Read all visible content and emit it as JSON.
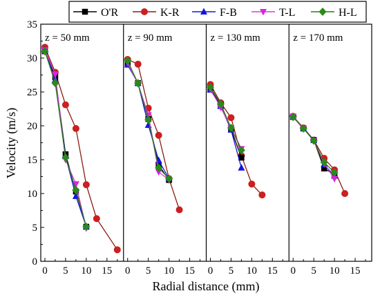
{
  "chart_data": {
    "type": "line",
    "xlabel": "Radial distance (mm)",
    "ylabel": "Velocity (m/s)",
    "ylim": [
      0,
      35
    ],
    "yticks": [
      0,
      5,
      10,
      15,
      20,
      25,
      30,
      35
    ],
    "panel_xlim": [
      -1,
      19
    ],
    "xticks": [
      0,
      5,
      10,
      15
    ],
    "legend_placement": "top-center",
    "grid": false,
    "series_styles": [
      {
        "name": "O'R",
        "marker": "square",
        "color": "#000000",
        "line": "#000000"
      },
      {
        "name": "K-R",
        "marker": "circle",
        "color": "#cc1f1f",
        "line": "#8a1a10"
      },
      {
        "name": "F-B",
        "marker": "triangle-up",
        "color": "#1414e0",
        "line": "#1414e0"
      },
      {
        "name": "T-L",
        "marker": "triangle-down",
        "color": "#e020e0",
        "line": "#d040d0"
      },
      {
        "name": "H-L",
        "marker": "diamond",
        "color": "#2a8a1a",
        "line": "#2a7a18"
      }
    ],
    "panels": [
      {
        "label": "z = 50 mm",
        "series": [
          {
            "name": "O'R",
            "x": [
              0,
              2.5,
              5,
              7.5,
              10
            ],
            "y": [
              31.0,
              27.2,
              15.8,
              10.3,
              5.1
            ]
          },
          {
            "name": "K-R",
            "x": [
              0,
              2.5,
              5,
              7.5,
              10,
              12.5,
              17.5
            ],
            "y": [
              31.6,
              27.9,
              23.1,
              19.6,
              11.3,
              6.3,
              1.7
            ]
          },
          {
            "name": "F-B",
            "x": [
              0,
              2.5,
              5,
              7.5,
              10
            ],
            "y": [
              31.2,
              26.8,
              15.5,
              9.6,
              5.1
            ]
          },
          {
            "name": "T-L",
            "x": [
              0,
              2.5,
              5,
              7.5,
              10
            ],
            "y": [
              31.2,
              27.6,
              15.0,
              11.4,
              4.9
            ]
          },
          {
            "name": "H-L",
            "x": [
              0,
              2.5,
              5,
              7.5,
              10
            ],
            "y": [
              31.0,
              26.3,
              15.3,
              10.5,
              5.1
            ]
          }
        ]
      },
      {
        "label": "z = 90 mm",
        "series": [
          {
            "name": "O'R",
            "x": [
              0,
              2.5,
              5,
              7.5,
              10
            ],
            "y": [
              29.2,
              26.3,
              21.0,
              14.2,
              12.0
            ]
          },
          {
            "name": "K-R",
            "x": [
              0,
              2.5,
              5,
              7.5,
              10,
              12.5
            ],
            "y": [
              29.8,
              29.1,
              22.6,
              18.6,
              12.2,
              7.6
            ]
          },
          {
            "name": "F-B",
            "x": [
              0,
              2.5,
              5,
              7.5,
              10
            ],
            "y": [
              29.0,
              26.3,
              20.1,
              14.9,
              12.2
            ]
          },
          {
            "name": "T-L",
            "x": [
              0,
              2.5,
              5,
              7.5,
              10
            ],
            "y": [
              29.3,
              26.2,
              21.6,
              13.2,
              12.0
            ]
          },
          {
            "name": "H-L",
            "x": [
              0,
              2.5,
              5,
              7.5,
              10
            ],
            "y": [
              29.6,
              26.3,
              20.9,
              13.8,
              12.2
            ]
          }
        ]
      },
      {
        "label": "z = 130 mm",
        "series": [
          {
            "name": "O'R",
            "x": [
              0,
              2.5,
              5,
              7.5
            ],
            "y": [
              25.5,
              23.1,
              19.5,
              15.3
            ]
          },
          {
            "name": "K-R",
            "x": [
              0,
              2.5,
              5,
              7.5,
              10,
              12.5
            ],
            "y": [
              26.1,
              23.4,
              21.2,
              15.6,
              11.4,
              9.8
            ]
          },
          {
            "name": "F-B",
            "x": [
              0,
              2.5,
              5,
              7.5
            ],
            "y": [
              25.3,
              22.9,
              19.4,
              13.8
            ]
          },
          {
            "name": "T-L",
            "x": [
              0,
              2.5,
              5,
              7.5
            ],
            "y": [
              25.4,
              22.7,
              19.7,
              16.6
            ]
          },
          {
            "name": "H-L",
            "x": [
              0,
              2.5,
              5,
              7.5
            ],
            "y": [
              25.7,
              23.2,
              19.7,
              16.4
            ]
          }
        ]
      },
      {
        "label": "z = 170 mm",
        "series": [
          {
            "name": "O'R",
            "x": [
              0,
              2.5,
              5,
              7.5,
              10
            ],
            "y": [
              21.3,
              19.6,
              17.9,
              13.7,
              12.8
            ]
          },
          {
            "name": "K-R",
            "x": [
              0,
              2.5,
              5,
              7.5,
              10,
              12.5
            ],
            "y": [
              21.4,
              19.7,
              17.9,
              15.2,
              13.5,
              10.0
            ]
          },
          {
            "name": "F-B",
            "x": [
              0,
              2.5,
              5,
              7.5,
              10
            ],
            "y": [
              21.3,
              19.6,
              17.9,
              14.3,
              12.6
            ]
          },
          {
            "name": "T-L",
            "x": [
              0,
              2.5,
              5,
              7.5,
              10
            ],
            "y": [
              21.4,
              19.6,
              17.8,
              14.4,
              12.2
            ]
          },
          {
            "name": "H-L",
            "x": [
              0,
              2.5,
              5,
              7.5,
              10
            ],
            "y": [
              21.3,
              19.6,
              17.8,
              14.6,
              13.1
            ]
          }
        ]
      }
    ]
  }
}
